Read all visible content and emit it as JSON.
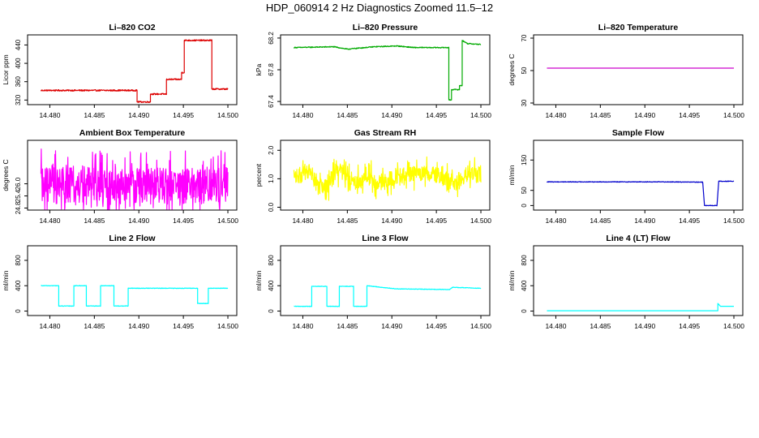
{
  "page": {
    "title": "HDP_060914  2 Hz Diagnostics Zoomed 11.5–12"
  },
  "chart_data": [
    {
      "type": "line",
      "title": "Li–820 CO2",
      "ylabel": "Licor ppm",
      "xlim": [
        14.4775,
        14.501
      ],
      "ylim": [
        310,
        462
      ],
      "xticks": [
        "14.480",
        "14.485",
        "14.490",
        "14.495",
        "14.500"
      ],
      "yticks": [
        "320",
        "360",
        "400",
        "440"
      ],
      "color": "#dd0000",
      "noise": 1.5,
      "series": [
        {
          "points": [
            [
              14.479,
              341
            ],
            [
              14.4898,
              341
            ],
            [
              14.4898,
              316
            ],
            [
              14.4913,
              316
            ],
            [
              14.4913,
              333
            ],
            [
              14.4931,
              333
            ],
            [
              14.4931,
              365
            ],
            [
              14.4948,
              365
            ],
            [
              14.4948,
              380
            ],
            [
              14.4951,
              380
            ],
            [
              14.4951,
              450
            ],
            [
              14.4982,
              450
            ],
            [
              14.4982,
              344
            ],
            [
              14.5,
              344
            ]
          ]
        }
      ]
    },
    {
      "type": "line",
      "title": "Li–820 Pressure",
      "ylabel": "kPa",
      "xlim": [
        14.4775,
        14.501
      ],
      "ylim": [
        67.36,
        68.24
      ],
      "xticks": [
        "14.480",
        "14.485",
        "14.490",
        "14.495",
        "14.500"
      ],
      "yticks": [
        "67.4",
        "67.8",
        "68.2"
      ],
      "color": "#00aa00",
      "noise": 0.006,
      "series": [
        {
          "points": [
            [
              14.479,
              68.08
            ],
            [
              14.4835,
              68.09
            ],
            [
              14.485,
              68.06
            ],
            [
              14.488,
              68.09
            ],
            [
              14.4906,
              68.1
            ],
            [
              14.4925,
              68.08
            ],
            [
              14.4955,
              68.08
            ],
            [
              14.4964,
              68.08
            ],
            [
              14.4964,
              67.42
            ],
            [
              14.4967,
              67.42
            ],
            [
              14.4967,
              67.55
            ],
            [
              14.4976,
              67.55
            ],
            [
              14.4976,
              67.6
            ],
            [
              14.4979,
              67.6
            ],
            [
              14.4979,
              68.17
            ],
            [
              14.4985,
              68.13
            ],
            [
              14.5,
              68.12
            ]
          ]
        }
      ]
    },
    {
      "type": "line",
      "title": "Li–820 Temperature",
      "ylabel": "degrees C",
      "xlim": [
        14.4775,
        14.501
      ],
      "ylim": [
        29,
        72
      ],
      "xticks": [
        "14.480",
        "14.485",
        "14.490",
        "14.495",
        "14.500"
      ],
      "yticks": [
        "30",
        "50",
        "70"
      ],
      "color": "#cc00cc",
      "noise": 0,
      "series": [
        {
          "points": [
            [
              14.479,
              51.5
            ],
            [
              14.5,
              51.5
            ]
          ]
        }
      ]
    },
    {
      "type": "line",
      "title": "Ambient Box Temperature",
      "ylabel": "degrees C",
      "xlim": [
        14.4775,
        14.501
      ],
      "ylim": [
        24.7,
        28.15
      ],
      "xticks": [
        "14.480",
        "14.485",
        "14.490",
        "14.495",
        "14.500"
      ],
      "yticks": [
        "24.8",
        "25.4",
        "26.0"
      ],
      "color": "#ff00ff",
      "noise": 0.7,
      "spiky": true,
      "series": [
        {
          "points": [
            [
              14.479,
              25.9
            ],
            [
              14.5,
              25.9
            ]
          ]
        }
      ]
    },
    {
      "type": "line",
      "title": "Gas Stream RH",
      "ylabel": "percent",
      "xlim": [
        14.4775,
        14.501
      ],
      "ylim": [
        -0.1,
        2.35
      ],
      "xticks": [
        "14.480",
        "14.485",
        "14.490",
        "14.495",
        "14.500"
      ],
      "yticks": [
        "0.0",
        "1.0",
        "2.0"
      ],
      "color": "#ffff00",
      "noise": 0.22,
      "spiky": true,
      "series": [
        {
          "points": [
            [
              14.479,
              1.1
            ],
            [
              14.481,
              1.2
            ],
            [
              14.4818,
              0.75
            ],
            [
              14.4828,
              0.7
            ],
            [
              14.4838,
              1.3
            ],
            [
              14.4848,
              1.2
            ],
            [
              14.4858,
              0.9
            ],
            [
              14.4868,
              1.0
            ],
            [
              14.4875,
              1.3
            ],
            [
              14.488,
              0.85
            ],
            [
              14.4892,
              0.9
            ],
            [
              14.4905,
              1.1
            ],
            [
              14.4925,
              1.15
            ],
            [
              14.494,
              1.2
            ],
            [
              14.496,
              1.0
            ],
            [
              14.4975,
              0.8
            ],
            [
              14.4985,
              1.2
            ],
            [
              14.5,
              1.15
            ]
          ]
        }
      ]
    },
    {
      "type": "line",
      "title": "Sample Flow",
      "ylabel": "ml/min",
      "xlim": [
        14.4775,
        14.501
      ],
      "ylim": [
        -15,
        215
      ],
      "xticks": [
        "14.480",
        "14.485",
        "14.490",
        "14.495",
        "14.500"
      ],
      "yticks": [
        "0",
        "50",
        "150"
      ],
      "color": "#0000cc",
      "noise": 1,
      "series": [
        {
          "points": [
            [
              14.479,
              78
            ],
            [
              14.4925,
              78
            ],
            [
              14.4965,
              77
            ],
            [
              14.4967,
              0
            ],
            [
              14.4981,
              0
            ],
            [
              14.4983,
              80
            ],
            [
              14.5,
              80
            ]
          ]
        }
      ]
    },
    {
      "type": "line",
      "title": "Line 2 Flow",
      "ylabel": "ml/min",
      "xlim": [
        14.4775,
        14.501
      ],
      "ylim": [
        -70,
        1030
      ],
      "xticks": [
        "14.480",
        "14.485",
        "14.490",
        "14.495",
        "14.500"
      ],
      "yticks": [
        "0",
        "400",
        "800"
      ],
      "color": "#00ffff",
      "noise": 4,
      "series": [
        {
          "points": [
            [
              14.479,
              400
            ],
            [
              14.481,
              400
            ],
            [
              14.481,
              80
            ],
            [
              14.4827,
              80
            ],
            [
              14.4827,
              400
            ],
            [
              14.4841,
              400
            ],
            [
              14.4841,
              80
            ],
            [
              14.4857,
              80
            ],
            [
              14.4857,
              400
            ],
            [
              14.4872,
              400
            ],
            [
              14.4872,
              80
            ],
            [
              14.4888,
              80
            ],
            [
              14.4888,
              360
            ],
            [
              14.4966,
              360
            ],
            [
              14.4966,
              120
            ],
            [
              14.4978,
              120
            ],
            [
              14.4978,
              360
            ],
            [
              14.5,
              360
            ]
          ]
        }
      ]
    },
    {
      "type": "line",
      "title": "Line 3 Flow",
      "ylabel": "ml/min",
      "xlim": [
        14.4775,
        14.501
      ],
      "ylim": [
        -70,
        1030
      ],
      "xticks": [
        "14.480",
        "14.485",
        "14.490",
        "14.495",
        "14.500"
      ],
      "yticks": [
        "0",
        "400",
        "800"
      ],
      "color": "#00ffff",
      "noise": 4,
      "series": [
        {
          "points": [
            [
              14.479,
              75
            ],
            [
              14.481,
              75
            ],
            [
              14.481,
              390
            ],
            [
              14.4827,
              390
            ],
            [
              14.4827,
              75
            ],
            [
              14.4841,
              75
            ],
            [
              14.4841,
              390
            ],
            [
              14.4857,
              390
            ],
            [
              14.4857,
              75
            ],
            [
              14.4872,
              75
            ],
            [
              14.4872,
              400
            ],
            [
              14.4905,
              350
            ],
            [
              14.4965,
              340
            ],
            [
              14.4968,
              375
            ],
            [
              14.5,
              360
            ]
          ]
        }
      ]
    },
    {
      "type": "line",
      "title": "Line 4 (LT) Flow",
      "ylabel": "ml/min",
      "xlim": [
        14.4775,
        14.501
      ],
      "ylim": [
        -70,
        1030
      ],
      "xticks": [
        "14.480",
        "14.485",
        "14.490",
        "14.495",
        "14.500"
      ],
      "yticks": [
        "0",
        "400",
        "800"
      ],
      "color": "#00ffff",
      "noise": 0,
      "series": [
        {
          "points": [
            [
              14.479,
              5
            ],
            [
              14.4982,
              5
            ],
            [
              14.4982,
              120
            ],
            [
              14.4985,
              75
            ],
            [
              14.5,
              75
            ]
          ]
        }
      ]
    }
  ]
}
